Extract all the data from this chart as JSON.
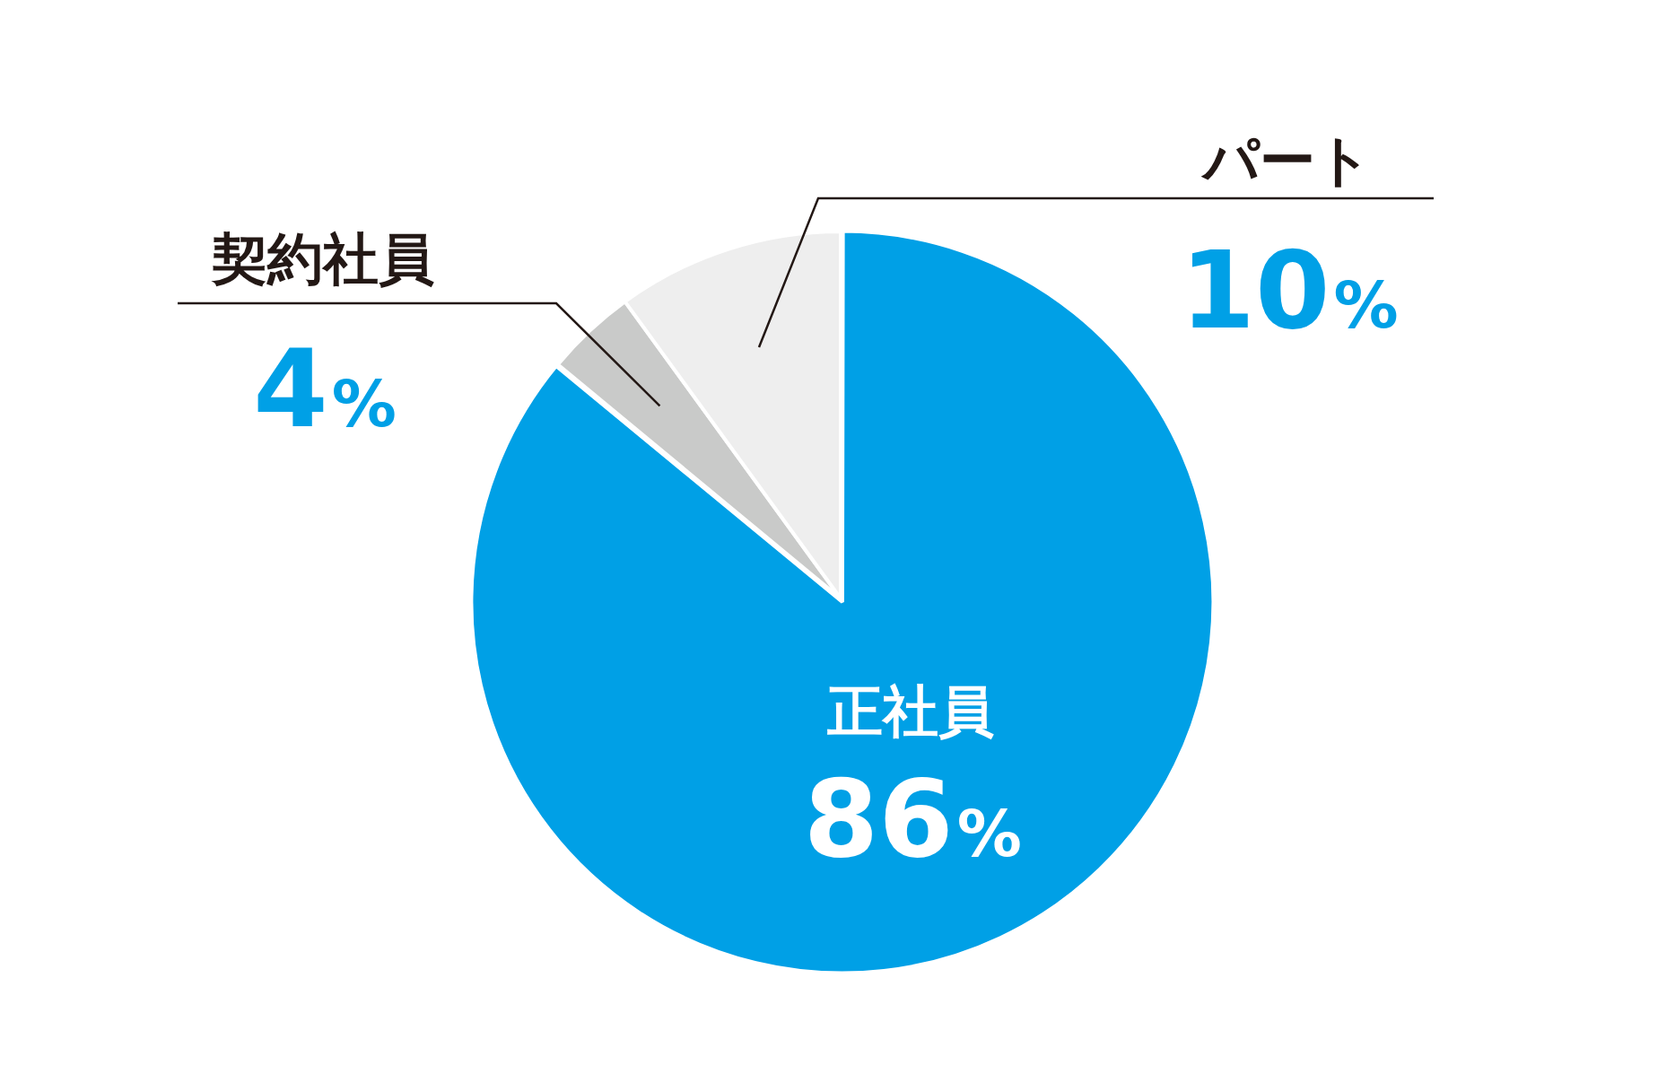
{
  "chart_data": {
    "type": "pie",
    "categories": [
      "正社員",
      "契約社員",
      "パート"
    ],
    "values": [
      86,
      4,
      10
    ],
    "colors": [
      "#00a0e6",
      "#c9cac9",
      "#eeeeee"
    ],
    "value_labels": [
      "86%",
      "4%",
      "10%"
    ],
    "legend": false
  }
}
